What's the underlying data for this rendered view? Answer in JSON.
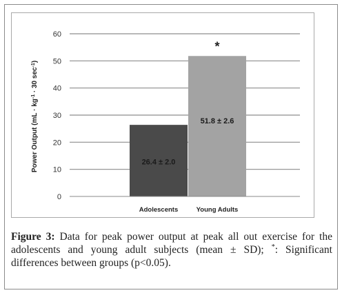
{
  "chart_data": {
    "type": "bar",
    "categories": [
      "Adolescents",
      "Young Adults"
    ],
    "values": [
      26.4,
      51.8
    ],
    "value_labels": [
      "26.4 ± 2.0",
      "51.8 ± 2.6"
    ],
    "sd": [
      2.0,
      2.6
    ],
    "colors": [
      "#4a4a4a",
      "#a3a3a3"
    ],
    "ylabel_main": "Power Output (mL · kg",
    "ylabel_sup1": "-1",
    "ylabel_mid": " · 30 sec",
    "ylabel_sup2": "-1",
    "ylabel_end": ")",
    "ylim": [
      0,
      60
    ],
    "yticks": [
      "0",
      "10",
      "20",
      "30",
      "40",
      "50",
      "60"
    ],
    "grid": true,
    "annotation": "*"
  },
  "caption": {
    "label": "Figure 3:",
    "text": " Data for peak power output at peak all out exercise for the adolescents and young adult subjects (mean ± SD); ",
    "sup": "*",
    "text_end": ": Significant differences between groups (p<0.05)."
  }
}
